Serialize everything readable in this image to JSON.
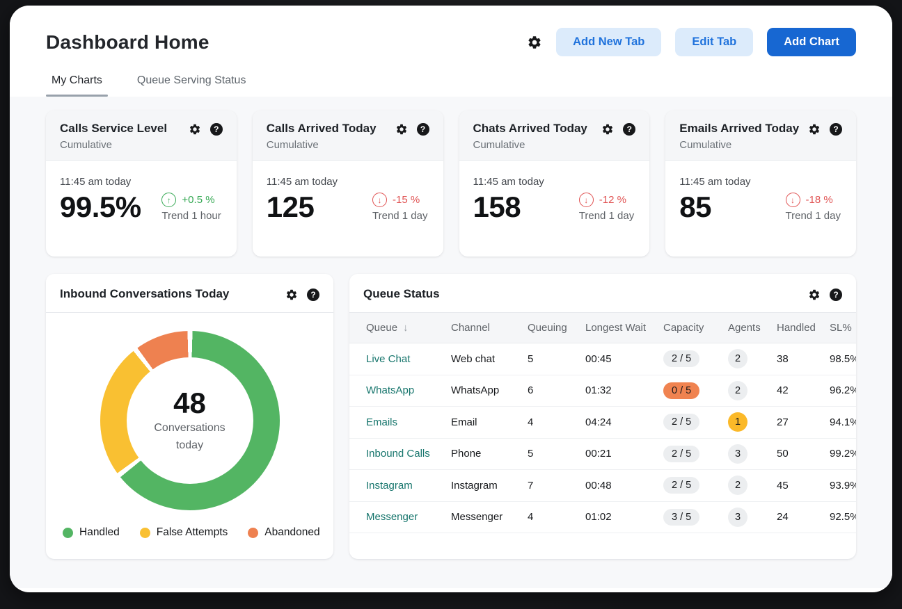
{
  "page": {
    "title": "Dashboard Home"
  },
  "header": {
    "add_new_tab_label": "Add New Tab",
    "edit_tab_label": "Edit Tab",
    "add_chart_label": "Add Chart"
  },
  "tabs": [
    {
      "label": "My Charts",
      "active": true
    },
    {
      "label": "Queue Serving Status",
      "active": false
    }
  ],
  "kpi_cards": [
    {
      "title": "Calls Service Level",
      "subtitle": "Cumulative",
      "time": "11:45 am today",
      "value": "99.5%",
      "trend_dir": "up",
      "trend_value": "+0.5 %",
      "trend_label": "Trend 1 hour"
    },
    {
      "title": "Calls Arrived Today",
      "subtitle": "Cumulative",
      "time": "11:45 am today",
      "value": "125",
      "trend_dir": "down",
      "trend_value": "-15 %",
      "trend_label": "Trend 1 day"
    },
    {
      "title": "Chats Arrived Today",
      "subtitle": "Cumulative",
      "time": "11:45 am today",
      "value": "158",
      "trend_dir": "down",
      "trend_value": "-12 %",
      "trend_label": "Trend 1 day"
    },
    {
      "title": "Emails Arrived Today",
      "subtitle": "Cumulative",
      "time": "11:45 am today",
      "value": "85",
      "trend_dir": "down",
      "trend_value": "-18 %",
      "trend_label": "Trend 1 day"
    }
  ],
  "donut_card": {
    "title": "Inbound Conversations Today",
    "center_value": "48",
    "center_label_line1": "Conversations",
    "center_label_line2": "today"
  },
  "chart_data": {
    "type": "pie",
    "variant": "donut",
    "title": "Inbound Conversations Today",
    "center_text": "48 Conversations today",
    "labels": [
      "Handled",
      "False Attempts",
      "Abandoned"
    ],
    "values": [
      31,
      12,
      5
    ],
    "total": 48,
    "colors": [
      "#53b563",
      "#f9c032",
      "#ee8150"
    ],
    "legend_position": "bottom"
  },
  "queue_card": {
    "title": "Queue Status",
    "columns": [
      "Queue",
      "Channel",
      "Queuing",
      "Longest Wait",
      "Capacity",
      "Agents",
      "Handled",
      "SL%"
    ],
    "sorted_column": "Queue",
    "rows": [
      {
        "queue": "Live Chat",
        "channel": "Web chat",
        "queuing": "5",
        "longest_wait": "00:45",
        "capacity": "2 / 5",
        "capacity_style": "gray",
        "agents": "2",
        "agents_style": "gray",
        "handled": "38",
        "sl": "98.5%"
      },
      {
        "queue": "WhatsApp",
        "channel": "WhatsApp",
        "queuing": "6",
        "longest_wait": "01:32",
        "capacity": "0 / 5",
        "capacity_style": "orange",
        "agents": "2",
        "agents_style": "gray",
        "handled": "42",
        "sl": "96.2%"
      },
      {
        "queue": "Emails",
        "channel": "Email",
        "queuing": "4",
        "longest_wait": "04:24",
        "capacity": "2 / 5",
        "capacity_style": "gray",
        "agents": "1",
        "agents_style": "yellow",
        "handled": "27",
        "sl": "94.1%"
      },
      {
        "queue": "Inbound Calls",
        "channel": "Phone",
        "queuing": "5",
        "longest_wait": "00:21",
        "capacity": "2 / 5",
        "capacity_style": "gray",
        "agents": "3",
        "agents_style": "gray",
        "handled": "50",
        "sl": "99.2%"
      },
      {
        "queue": "Instagram",
        "channel": "Instagram",
        "queuing": "7",
        "longest_wait": "00:48",
        "capacity": "2 / 5",
        "capacity_style": "gray",
        "agents": "2",
        "agents_style": "gray",
        "handled": "45",
        "sl": "93.9%"
      },
      {
        "queue": "Messenger",
        "channel": "Messenger",
        "queuing": "4",
        "longest_wait": "01:02",
        "capacity": "3 / 5",
        "capacity_style": "gray",
        "agents": "3",
        "agents_style": "gray",
        "handled": "24",
        "sl": "92.5%"
      }
    ]
  },
  "colors": {
    "primary_blue": "#1767d2",
    "light_blue_button": "#dcebfb",
    "link_teal": "#16756c",
    "trend_up_green": "#34a853",
    "trend_down_red": "#e05252",
    "donut_green": "#53b563",
    "donut_yellow": "#f9c032",
    "donut_orange": "#ee8150",
    "pill_gray": "#eceef0",
    "pill_orange": "#f08350",
    "badge_yellow": "#fbb929",
    "content_bg": "#f7f8fa"
  },
  "icons": {
    "settings": "gear-icon",
    "help": "question-mark-icon",
    "sort": "sort-descending-arrow-icon",
    "trend_up": "arrow-up-circle-icon",
    "trend_down": "arrow-down-circle-icon"
  }
}
